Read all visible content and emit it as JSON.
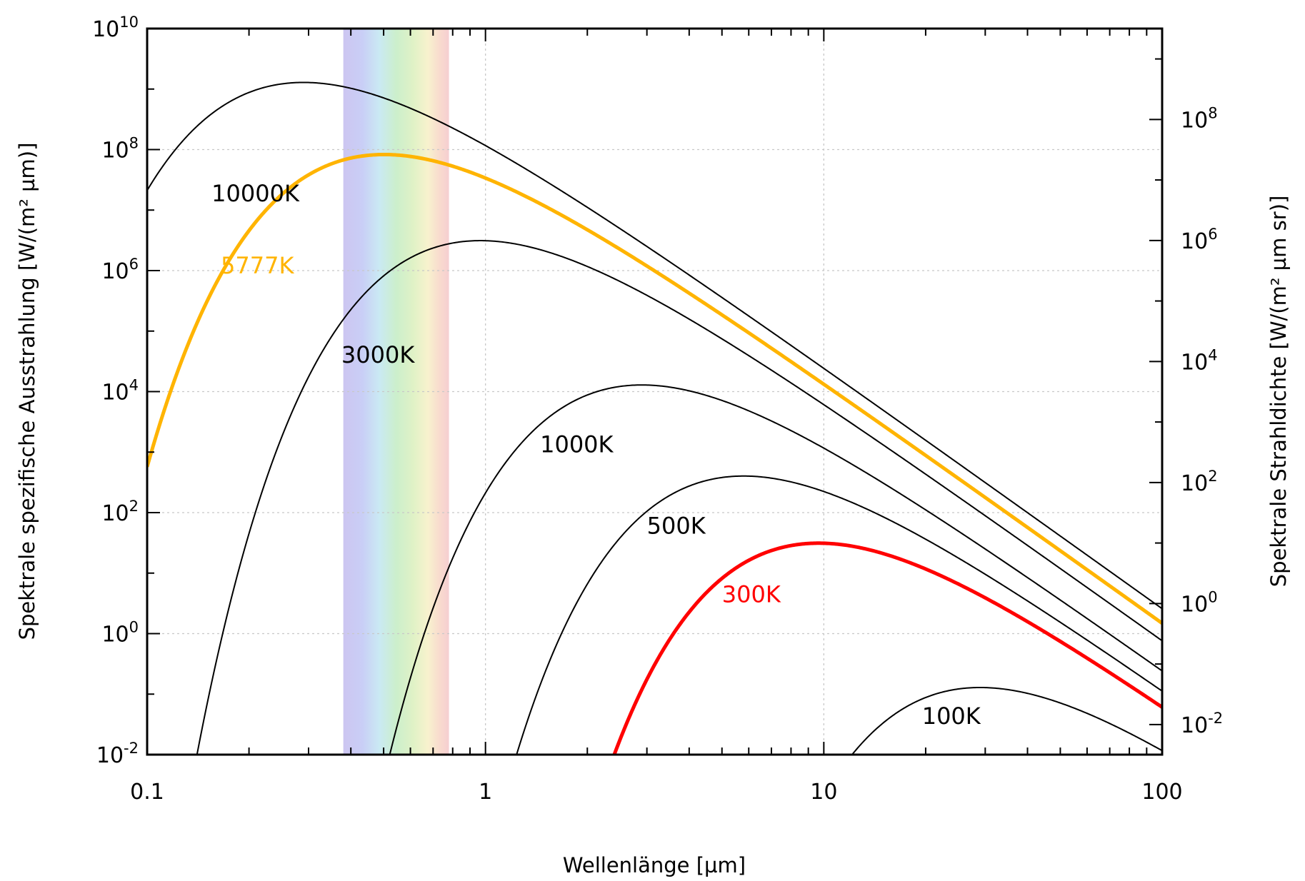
{
  "chart_data": {
    "type": "line",
    "xlabel": "Wellenlänge [µm]",
    "ylabel": "Spektrale spezifische Ausstrahlung [W/(m² µm)]",
    "ylabel_right": "Spektrale Strahldichte [W/(m² µm sr)]",
    "x_scale": "log",
    "y_scale": "log",
    "xlim": [
      0.1,
      100
    ],
    "ylim": [
      0.01,
      10000000000
    ],
    "ylim_right": [
      0.00318,
      3180000000
    ],
    "x_ticks": [
      {
        "value": 0.1,
        "label": "0.1"
      },
      {
        "value": 1,
        "label": "1"
      },
      {
        "value": 10,
        "label": "10"
      },
      {
        "value": 100,
        "label": "100"
      }
    ],
    "y_ticks": [
      {
        "value": 0.01,
        "base": "10",
        "exp": "-2"
      },
      {
        "value": 1,
        "base": "10",
        "exp": "0"
      },
      {
        "value": 100,
        "base": "10",
        "exp": "2"
      },
      {
        "value": 10000,
        "base": "10",
        "exp": "4"
      },
      {
        "value": 1000000,
        "base": "10",
        "exp": "6"
      },
      {
        "value": 100000000,
        "base": "10",
        "exp": "8"
      },
      {
        "value": 10000000000,
        "base": "10",
        "exp": "10"
      }
    ],
    "y_ticks_right": [
      {
        "value": 0.01,
        "base": "10",
        "exp": "-2"
      },
      {
        "value": 1,
        "base": "10",
        "exp": "0"
      },
      {
        "value": 100,
        "base": "10",
        "exp": "2"
      },
      {
        "value": 10000,
        "base": "10",
        "exp": "4"
      },
      {
        "value": 1000000,
        "base": "10",
        "exp": "6"
      },
      {
        "value": 100000000,
        "base": "10",
        "exp": "8"
      }
    ],
    "grid": true,
    "visible_band": {
      "from": 0.38,
      "to": 0.78
    },
    "series": [
      {
        "name": "10000K",
        "temperature": 10000,
        "color": "#000000",
        "width": 2,
        "label_pos": {
          "x": 0.155,
          "y": 14000000
        }
      },
      {
        "name": "5777K",
        "temperature": 5777,
        "color": "#ffb400",
        "width": 5,
        "label_pos": {
          "x": 0.165,
          "y": 900000
        }
      },
      {
        "name": "3000K",
        "temperature": 3000,
        "color": "#000000",
        "width": 2,
        "label_pos": {
          "x": 0.375,
          "y": 30000
        }
      },
      {
        "name": "1000K",
        "temperature": 1000,
        "color": "#000000",
        "width": 2,
        "label_pos": {
          "x": 1.45,
          "y": 1000
        }
      },
      {
        "name": "500K",
        "temperature": 500,
        "color": "#000000",
        "width": 2,
        "label_pos": {
          "x": 3.0,
          "y": 45
        }
      },
      {
        "name": "300K",
        "temperature": 300,
        "color": "#ff0000",
        "width": 5,
        "label_pos": {
          "x": 5.0,
          "y": 3.3
        }
      },
      {
        "name": "100K",
        "temperature": 100,
        "color": "#000000",
        "width": 2,
        "label_pos": {
          "x": 19.5,
          "y": 0.032
        }
      }
    ]
  }
}
